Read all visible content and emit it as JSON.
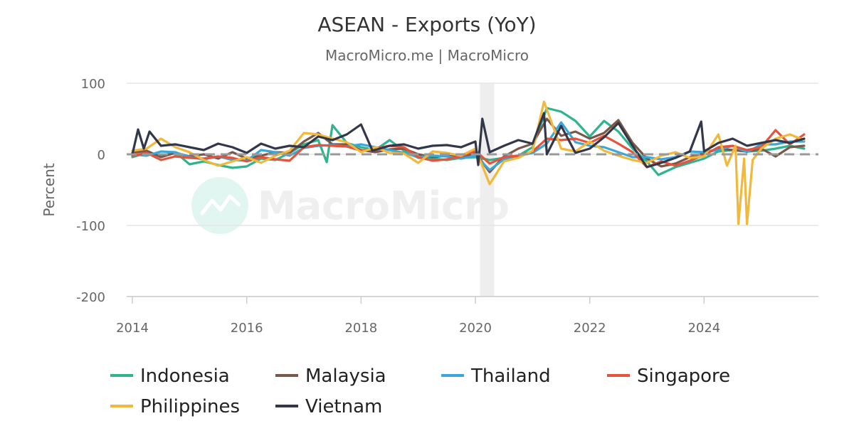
{
  "chart_data": {
    "type": "line",
    "title": "ASEAN - Exports (YoY)",
    "subtitle": "MacroMicro.me | MacroMicro",
    "ylabel": "Percent",
    "xlabel": "",
    "ylim": [
      -200,
      100
    ],
    "yticks": [
      100,
      0,
      -100,
      -200
    ],
    "xlim": [
      2014,
      2025.9
    ],
    "xticks": [
      "2014",
      "2016",
      "2018",
      "2020",
      "2022",
      "2024"
    ],
    "recession_band": [
      2020.08,
      2020.33
    ],
    "zero_line": true,
    "grid": true,
    "legend_position": "bottom",
    "watermark": "MacroMicro",
    "series": [
      {
        "name": "Indonesia",
        "color": "#2fb48e",
        "points": [
          [
            2014.0,
            -4
          ],
          [
            2014.25,
            2
          ],
          [
            2014.5,
            -2
          ],
          [
            2014.75,
            3
          ],
          [
            2015.0,
            -14
          ],
          [
            2015.25,
            -10
          ],
          [
            2015.5,
            -15
          ],
          [
            2015.75,
            -19
          ],
          [
            2016.0,
            -17
          ],
          [
            2016.25,
            -6
          ],
          [
            2016.5,
            -8
          ],
          [
            2016.75,
            2
          ],
          [
            2017.0,
            14
          ],
          [
            2017.25,
            20
          ],
          [
            2017.4,
            -11
          ],
          [
            2017.5,
            41
          ],
          [
            2017.75,
            16
          ],
          [
            2018.0,
            10
          ],
          [
            2018.25,
            6
          ],
          [
            2018.5,
            20
          ],
          [
            2018.75,
            5
          ],
          [
            2019.0,
            -5
          ],
          [
            2019.25,
            -6
          ],
          [
            2019.5,
            -8
          ],
          [
            2019.75,
            -5
          ],
          [
            2020.0,
            -4
          ],
          [
            2020.25,
            -8
          ],
          [
            2020.5,
            -5
          ],
          [
            2020.75,
            -2
          ],
          [
            2021.0,
            10
          ],
          [
            2021.25,
            65
          ],
          [
            2021.5,
            60
          ],
          [
            2021.75,
            47
          ],
          [
            2022.0,
            25
          ],
          [
            2022.25,
            47
          ],
          [
            2022.5,
            32
          ],
          [
            2022.75,
            8
          ],
          [
            2023.0,
            -10
          ],
          [
            2023.2,
            -29
          ],
          [
            2023.5,
            -18
          ],
          [
            2023.75,
            -12
          ],
          [
            2024.0,
            -6
          ],
          [
            2024.25,
            4
          ],
          [
            2024.5,
            6
          ],
          [
            2024.75,
            4
          ],
          [
            2025.0,
            5
          ],
          [
            2025.25,
            8
          ],
          [
            2025.5,
            12
          ],
          [
            2025.75,
            8
          ]
        ]
      },
      {
        "name": "Malaysia",
        "color": "#7a5748",
        "points": [
          [
            2014.0,
            2
          ],
          [
            2014.25,
            5
          ],
          [
            2014.5,
            -4
          ],
          [
            2014.75,
            2
          ],
          [
            2015.0,
            -3
          ],
          [
            2015.25,
            0
          ],
          [
            2015.5,
            -6
          ],
          [
            2015.75,
            3
          ],
          [
            2016.0,
            -6
          ],
          [
            2016.25,
            -2
          ],
          [
            2016.5,
            3
          ],
          [
            2016.75,
            2
          ],
          [
            2017.0,
            18
          ],
          [
            2017.25,
            30
          ],
          [
            2017.5,
            14
          ],
          [
            2017.75,
            14
          ],
          [
            2018.0,
            6
          ],
          [
            2018.25,
            3
          ],
          [
            2018.5,
            7
          ],
          [
            2018.75,
            8
          ],
          [
            2019.0,
            0
          ],
          [
            2019.25,
            -4
          ],
          [
            2019.5,
            -2
          ],
          [
            2019.75,
            -4
          ],
          [
            2020.0,
            2
          ],
          [
            2020.25,
            -25
          ],
          [
            2020.5,
            -3
          ],
          [
            2020.75,
            8
          ],
          [
            2021.0,
            15
          ],
          [
            2021.25,
            50
          ],
          [
            2021.5,
            26
          ],
          [
            2021.75,
            32
          ],
          [
            2022.0,
            22
          ],
          [
            2022.25,
            30
          ],
          [
            2022.5,
            48
          ],
          [
            2022.75,
            16
          ],
          [
            2023.0,
            -6
          ],
          [
            2023.25,
            -17
          ],
          [
            2023.5,
            -13
          ],
          [
            2023.75,
            -4
          ],
          [
            2024.0,
            2
          ],
          [
            2024.25,
            8
          ],
          [
            2024.5,
            6
          ],
          [
            2024.75,
            4
          ],
          [
            2025.0,
            8
          ],
          [
            2025.25,
            -3
          ],
          [
            2025.5,
            10
          ],
          [
            2025.75,
            12
          ]
        ]
      },
      {
        "name": "Thailand",
        "color": "#3aa7d9",
        "points": [
          [
            2014.0,
            0
          ],
          [
            2014.25,
            -2
          ],
          [
            2014.5,
            4
          ],
          [
            2014.75,
            3
          ],
          [
            2015.0,
            -4
          ],
          [
            2015.25,
            -7
          ],
          [
            2015.5,
            -3
          ],
          [
            2015.75,
            -8
          ],
          [
            2016.0,
            -9
          ],
          [
            2016.25,
            6
          ],
          [
            2016.5,
            3
          ],
          [
            2016.75,
            -2
          ],
          [
            2017.0,
            9
          ],
          [
            2017.25,
            12
          ],
          [
            2017.5,
            13
          ],
          [
            2017.75,
            11
          ],
          [
            2018.0,
            14
          ],
          [
            2018.25,
            10
          ],
          [
            2018.5,
            6
          ],
          [
            2018.75,
            2
          ],
          [
            2019.0,
            -4
          ],
          [
            2019.25,
            -2
          ],
          [
            2019.5,
            -3
          ],
          [
            2019.75,
            -6
          ],
          [
            2020.0,
            -2
          ],
          [
            2020.25,
            -22
          ],
          [
            2020.5,
            -7
          ],
          [
            2020.75,
            -2
          ],
          [
            2021.0,
            2
          ],
          [
            2021.25,
            15
          ],
          [
            2021.5,
            45
          ],
          [
            2021.75,
            17
          ],
          [
            2022.0,
            12
          ],
          [
            2022.25,
            10
          ],
          [
            2022.5,
            3
          ],
          [
            2022.75,
            -4
          ],
          [
            2023.0,
            -4
          ],
          [
            2023.25,
            -7
          ],
          [
            2023.5,
            -4
          ],
          [
            2023.75,
            4
          ],
          [
            2024.0,
            3
          ],
          [
            2024.25,
            6
          ],
          [
            2024.5,
            12
          ],
          [
            2024.75,
            3
          ],
          [
            2025.0,
            14
          ],
          [
            2025.25,
            14
          ],
          [
            2025.5,
            18
          ],
          [
            2025.75,
            18
          ]
        ]
      },
      {
        "name": "Singapore",
        "color": "#e4533b",
        "points": [
          [
            2014.0,
            -2
          ],
          [
            2014.25,
            2
          ],
          [
            2014.5,
            -8
          ],
          [
            2014.75,
            -3
          ],
          [
            2015.0,
            -5
          ],
          [
            2015.25,
            -6
          ],
          [
            2015.5,
            -3
          ],
          [
            2015.75,
            -5
          ],
          [
            2016.0,
            -10
          ],
          [
            2016.25,
            -4
          ],
          [
            2016.5,
            -7
          ],
          [
            2016.75,
            -9
          ],
          [
            2017.0,
            10
          ],
          [
            2017.25,
            13
          ],
          [
            2017.5,
            12
          ],
          [
            2017.75,
            11
          ],
          [
            2018.0,
            5
          ],
          [
            2018.25,
            8
          ],
          [
            2018.5,
            12
          ],
          [
            2018.75,
            10
          ],
          [
            2019.0,
            -4
          ],
          [
            2019.25,
            -9
          ],
          [
            2019.5,
            -7
          ],
          [
            2019.75,
            -3
          ],
          [
            2020.0,
            5
          ],
          [
            2020.25,
            -13
          ],
          [
            2020.5,
            -4
          ],
          [
            2020.75,
            -2
          ],
          [
            2021.0,
            4
          ],
          [
            2021.25,
            22
          ],
          [
            2021.5,
            20
          ],
          [
            2021.75,
            22
          ],
          [
            2022.0,
            16
          ],
          [
            2022.25,
            26
          ],
          [
            2022.5,
            15
          ],
          [
            2022.75,
            3
          ],
          [
            2023.0,
            -18
          ],
          [
            2023.25,
            -10
          ],
          [
            2023.5,
            -16
          ],
          [
            2023.75,
            -9
          ],
          [
            2024.0,
            -1
          ],
          [
            2024.25,
            10
          ],
          [
            2024.5,
            12
          ],
          [
            2024.75,
            6
          ],
          [
            2025.0,
            10
          ],
          [
            2025.25,
            34
          ],
          [
            2025.5,
            14
          ],
          [
            2025.75,
            28
          ]
        ]
      },
      {
        "name": "Philippines",
        "color": "#f2b83c",
        "points": [
          [
            2014.0,
            5
          ],
          [
            2014.25,
            8
          ],
          [
            2014.5,
            22
          ],
          [
            2014.75,
            10
          ],
          [
            2015.0,
            3
          ],
          [
            2015.25,
            -8
          ],
          [
            2015.5,
            -16
          ],
          [
            2015.75,
            -10
          ],
          [
            2016.0,
            -4
          ],
          [
            2016.25,
            -12
          ],
          [
            2016.5,
            -2
          ],
          [
            2016.75,
            5
          ],
          [
            2017.0,
            30
          ],
          [
            2017.25,
            28
          ],
          [
            2017.5,
            22
          ],
          [
            2017.75,
            17
          ],
          [
            2018.0,
            3
          ],
          [
            2018.25,
            10
          ],
          [
            2018.5,
            2
          ],
          [
            2018.75,
            1
          ],
          [
            2019.0,
            -12
          ],
          [
            2019.25,
            4
          ],
          [
            2019.5,
            2
          ],
          [
            2019.75,
            -2
          ],
          [
            2020.0,
            8
          ],
          [
            2020.25,
            -42
          ],
          [
            2020.5,
            -10
          ],
          [
            2020.75,
            -5
          ],
          [
            2021.0,
            5
          ],
          [
            2021.2,
            74
          ],
          [
            2021.5,
            8
          ],
          [
            2021.75,
            4
          ],
          [
            2022.0,
            18
          ],
          [
            2022.25,
            5
          ],
          [
            2022.5,
            -2
          ],
          [
            2022.75,
            -8
          ],
          [
            2023.0,
            -12
          ],
          [
            2023.25,
            -2
          ],
          [
            2023.5,
            3
          ],
          [
            2023.75,
            -5
          ],
          [
            2024.0,
            -3
          ],
          [
            2024.25,
            28
          ],
          [
            2024.4,
            -16
          ],
          [
            2024.55,
            12
          ],
          [
            2024.6,
            -98
          ],
          [
            2024.7,
            -6
          ],
          [
            2024.75,
            -98
          ],
          [
            2024.85,
            -8
          ],
          [
            2025.0,
            8
          ],
          [
            2025.25,
            22
          ],
          [
            2025.5,
            28
          ],
          [
            2025.75,
            20
          ]
        ]
      },
      {
        "name": "Vietnam",
        "color": "#33374a",
        "points": [
          [
            2014.0,
            0
          ],
          [
            2014.1,
            35
          ],
          [
            2014.2,
            8
          ],
          [
            2014.3,
            32
          ],
          [
            2014.5,
            12
          ],
          [
            2014.75,
            14
          ],
          [
            2015.0,
            10
          ],
          [
            2015.25,
            6
          ],
          [
            2015.5,
            15
          ],
          [
            2015.75,
            10
          ],
          [
            2016.0,
            2
          ],
          [
            2016.25,
            15
          ],
          [
            2016.5,
            8
          ],
          [
            2016.75,
            12
          ],
          [
            2017.0,
            10
          ],
          [
            2017.25,
            25
          ],
          [
            2017.5,
            20
          ],
          [
            2017.75,
            28
          ],
          [
            2018.0,
            42
          ],
          [
            2018.2,
            5
          ],
          [
            2018.5,
            12
          ],
          [
            2018.75,
            14
          ],
          [
            2019.0,
            8
          ],
          [
            2019.25,
            12
          ],
          [
            2019.5,
            13
          ],
          [
            2019.75,
            10
          ],
          [
            2020.0,
            18
          ],
          [
            2020.05,
            -15
          ],
          [
            2020.12,
            50
          ],
          [
            2020.25,
            3
          ],
          [
            2020.5,
            12
          ],
          [
            2020.75,
            20
          ],
          [
            2021.0,
            15
          ],
          [
            2021.2,
            58
          ],
          [
            2021.25,
            0
          ],
          [
            2021.5,
            40
          ],
          [
            2021.75,
            2
          ],
          [
            2022.0,
            8
          ],
          [
            2022.25,
            24
          ],
          [
            2022.5,
            44
          ],
          [
            2022.75,
            12
          ],
          [
            2023.0,
            -18
          ],
          [
            2023.25,
            -12
          ],
          [
            2023.5,
            -5
          ],
          [
            2023.75,
            4
          ],
          [
            2023.95,
            46
          ],
          [
            2024.0,
            4
          ],
          [
            2024.25,
            16
          ],
          [
            2024.5,
            22
          ],
          [
            2024.75,
            12
          ],
          [
            2025.0,
            16
          ],
          [
            2025.25,
            20
          ],
          [
            2025.5,
            16
          ],
          [
            2025.75,
            22
          ]
        ]
      }
    ]
  }
}
